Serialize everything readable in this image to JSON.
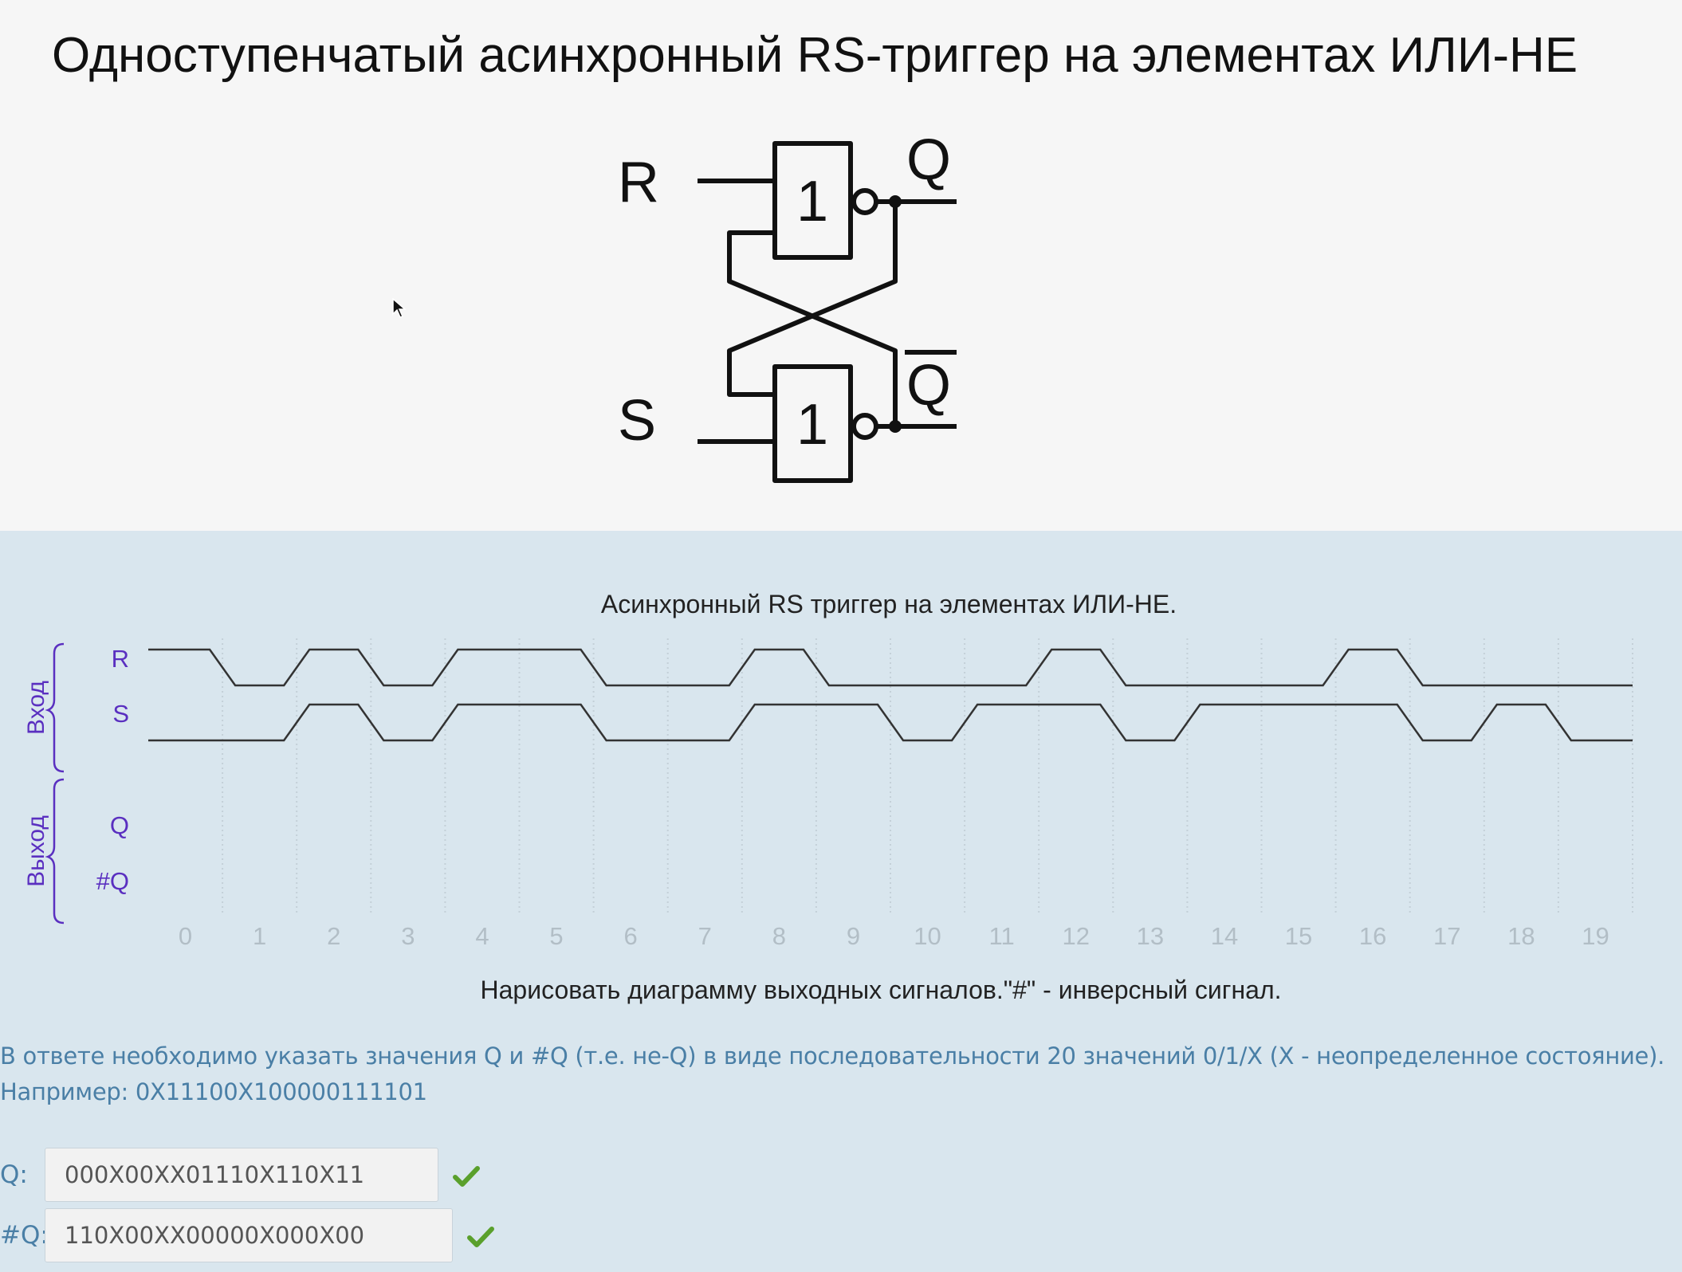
{
  "slide": {
    "title": "Одноступенчатый асинхронный RS-триггер на элементах ИЛИ-НЕ",
    "circuit": {
      "input_r": "R",
      "input_s": "S",
      "output_q": "Q",
      "output_nq": "Q",
      "gate_label": "1"
    }
  },
  "diagram": {
    "title": "Асинхронный RS триггер на элементах ИЛИ-НЕ.",
    "group_input": "Вход",
    "group_output": "Выход",
    "signals": [
      "R",
      "S",
      "Q",
      "#Q"
    ],
    "time_ticks": [
      "0",
      "1",
      "2",
      "3",
      "4",
      "5",
      "6",
      "7",
      "8",
      "9",
      "10",
      "11",
      "12",
      "13",
      "14",
      "15",
      "16",
      "17",
      "18",
      "19"
    ],
    "R_levels": [
      1,
      0,
      1,
      0,
      1,
      1,
      0,
      0,
      1,
      0,
      0,
      0,
      1,
      0,
      0,
      0,
      1,
      0,
      0,
      0
    ],
    "S_levels": [
      0,
      0,
      1,
      0,
      1,
      1,
      0,
      0,
      1,
      1,
      0,
      1,
      1,
      0,
      1,
      1,
      1,
      0,
      1,
      0
    ],
    "caption": "Нарисовать диаграмму выходных сигналов.\"#\" - инверсный сигнал.",
    "colors": {
      "label": "#5a2fc0",
      "line": "#333333"
    }
  },
  "task": {
    "note_line1": "В ответе необходимо указать значения Q и #Q (т.е. не-Q) в виде последовательности 20 значений 0/1/X (X - неопределенное состояние).",
    "note_line2": "Например: 0X11100X100000111101"
  },
  "answers": {
    "q_label": "Q:",
    "q_value": "000X00XX01110X110X11",
    "nq_label": "#Q:",
    "nq_value": "110X00XX00000X000X00",
    "check_color": "#5aa02c"
  }
}
